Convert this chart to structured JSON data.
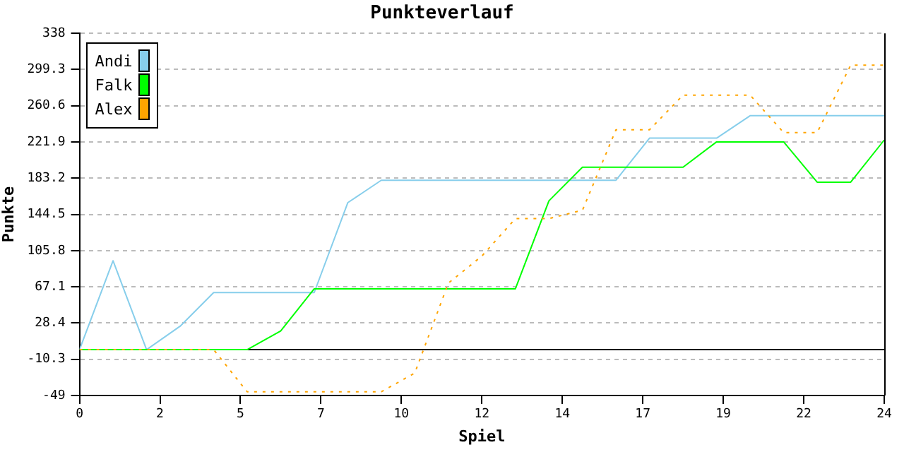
{
  "chart_data": {
    "type": "line",
    "title": "Punkteverlauf",
    "xlabel": "Spiel",
    "ylabel": "Punkte",
    "x": [
      0,
      1,
      2,
      3,
      4,
      5,
      6,
      7,
      8,
      9,
      10,
      11,
      12,
      13,
      14,
      15,
      16,
      17,
      18,
      19,
      20,
      21,
      22,
      23,
      24
    ],
    "series": [
      {
        "name": "Andi",
        "color": "#87ceeb",
        "line_style": "solid",
        "values": [
          0,
          95,
          0,
          25,
          61,
          61,
          61,
          61,
          157,
          181,
          181,
          181,
          181,
          181,
          181,
          181,
          181,
          226,
          226,
          226,
          250,
          250,
          250,
          250,
          250
        ]
      },
      {
        "name": "Falk",
        "color": "#00ff00",
        "line_style": "solid",
        "values": [
          0,
          0,
          0,
          0,
          0,
          0,
          20,
          65,
          65,
          65,
          65,
          65,
          65,
          65,
          159,
          195,
          195,
          195,
          195,
          222,
          222,
          222,
          179,
          179,
          224
        ]
      },
      {
        "name": "Alex",
        "color": "#ffa500",
        "line_style": "dotted",
        "values": [
          0,
          0,
          0,
          0,
          0,
          -45,
          -45,
          -45,
          -45,
          -45,
          -25,
          71,
          100,
          140,
          140,
          149,
          235,
          235,
          272,
          272,
          272,
          232,
          232,
          304,
          304
        ]
      }
    ],
    "xlim": [
      0,
      24
    ],
    "xticks": [
      0,
      {
        "value": 2.4,
        "label": "2"
      },
      {
        "value": 4.8,
        "label": "5"
      },
      {
        "value": 7.2,
        "label": "7"
      },
      {
        "value": 9.6,
        "label": "10"
      },
      12,
      {
        "value": 14.4,
        "label": "14"
      },
      {
        "value": 16.8,
        "label": "17"
      },
      {
        "value": 19.2,
        "label": "19"
      },
      {
        "value": 21.6,
        "label": "22"
      },
      24
    ],
    "ylim": [
      -49,
      338
    ],
    "yticks": [
      -49,
      -10.3,
      28.4,
      67.1,
      105.8,
      144.5,
      183.2,
      221.9,
      260.6,
      299.3,
      338
    ],
    "ref_lines": [
      {
        "axis": "y",
        "value": 0,
        "color": "#000000"
      }
    ],
    "grid": "y",
    "legend": "top left",
    "marker": "none"
  }
}
